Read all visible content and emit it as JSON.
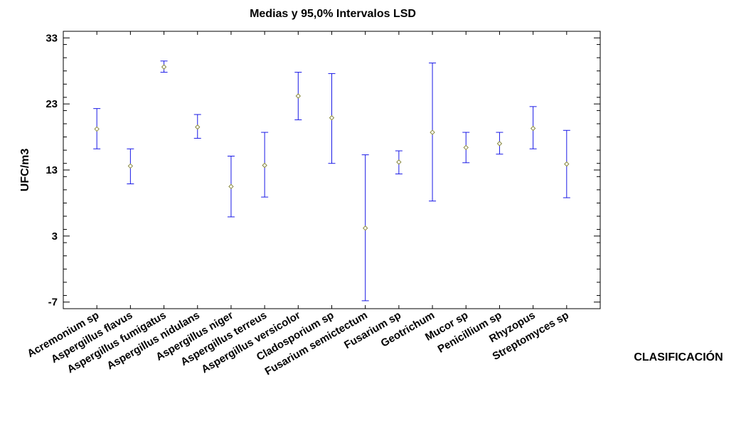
{
  "chart_data": {
    "type": "interval",
    "title": "Medias y 95,0% Intervalos LSD",
    "xlabel": "CLASIFICACIÓN",
    "ylabel": "UFC/m3",
    "ylim": [
      -8,
      34
    ],
    "yticks": [
      -7,
      3,
      13,
      23,
      33
    ],
    "yticks_labels": [
      "-7",
      "3",
      "13",
      "23",
      "33"
    ],
    "grid": false,
    "colors": {
      "interval": "#1a1ae6",
      "marker": "#8a8a40",
      "axis": "#000000"
    },
    "categories": [
      "Acremonium sp",
      "Aspergillus flavus",
      "Aspergillus fumigatus",
      "Aspergillus nidulans",
      "Aspergillus niger",
      "Aspergillus terreus",
      "Aspergillus versicolor",
      "Cladosporium sp",
      "Fusarium semictectum",
      "Fusarium sp",
      "Geotrichum",
      "Mucor sp",
      "Penicillium sp",
      "Rhyzopus",
      "Streptomyces sp"
    ],
    "means": [
      19.2,
      13.6,
      28.6,
      19.5,
      10.5,
      13.7,
      24.2,
      20.9,
      4.2,
      14.2,
      18.7,
      16.4,
      17.0,
      19.3,
      13.9
    ],
    "lower": [
      16.2,
      10.9,
      27.8,
      17.8,
      5.9,
      8.9,
      20.6,
      14.0,
      -6.8,
      12.4,
      8.3,
      14.1,
      15.4,
      16.2,
      8.8
    ],
    "upper": [
      22.3,
      16.2,
      29.5,
      21.4,
      15.1,
      18.7,
      27.8,
      27.6,
      15.3,
      15.9,
      29.2,
      18.7,
      18.7,
      22.6,
      19.0
    ]
  }
}
